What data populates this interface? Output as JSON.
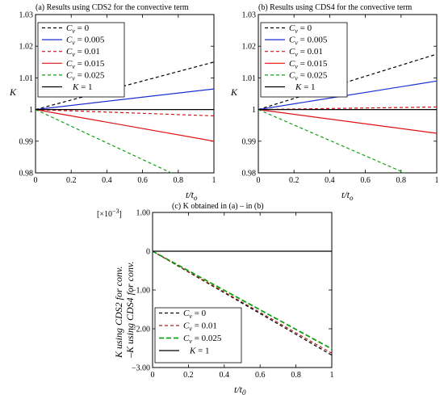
{
  "chart_data": [
    {
      "type": "line",
      "title": "(a) Results using CDS2 for the convective term",
      "xlabel": "t/t",
      "xlabel_sub": "o",
      "ylabel": "K",
      "xlim": [
        0,
        1
      ],
      "ylim": [
        0.98,
        1.03
      ],
      "xticks": [
        "0",
        "0.2",
        "0.4",
        "0.6",
        "0.8",
        "1"
      ],
      "yticks": [
        "0.98",
        "0.99",
        "1",
        "1.01",
        "1.02",
        "1.03"
      ],
      "legend_position": "top-left",
      "series": [
        {
          "name": "= 0",
          "color": "#000000",
          "dash": "4,3",
          "x": [
            0,
            1
          ],
          "y": [
            1.0,
            1.015
          ]
        },
        {
          "name": "= 0.005",
          "color": "#1a2fd0",
          "dash": "",
          "x": [
            0,
            1
          ],
          "y": [
            1.0,
            1.0065
          ]
        },
        {
          "name": "= 0.01",
          "color": "#d01010",
          "dash": "4,3",
          "x": [
            0,
            1
          ],
          "y": [
            1.0,
            0.998
          ]
        },
        {
          "name": "= 0.015",
          "color": "#e01010",
          "dash": "",
          "x": [
            0,
            1
          ],
          "y": [
            1.0,
            0.99
          ]
        },
        {
          "name": "= 0.025",
          "color": "#10a010",
          "dash": "4,3",
          "x": [
            0,
            0.76
          ],
          "y": [
            1.0,
            0.98
          ]
        },
        {
          "name": "K = 1",
          "color": "#000000",
          "dash": "",
          "x": [
            0,
            1
          ],
          "y": [
            1.0,
            1.0
          ]
        }
      ]
    },
    {
      "type": "line",
      "title": "(b) Results using CDS4 for the convective term",
      "xlabel": "t/t",
      "xlabel_sub": "o",
      "ylabel": "K",
      "xlim": [
        0,
        1
      ],
      "ylim": [
        0.98,
        1.03
      ],
      "xticks": [
        "0",
        "0.2",
        "0.4",
        "0.6",
        "0.8",
        "1"
      ],
      "yticks": [
        "0.98",
        "0.99",
        "1",
        "1.01",
        "1.02",
        "1.03"
      ],
      "legend_position": "top-left",
      "series": [
        {
          "name": "= 0",
          "color": "#000000",
          "dash": "4,3",
          "x": [
            0,
            1
          ],
          "y": [
            1.0,
            1.0175
          ]
        },
        {
          "name": "= 0.005",
          "color": "#1a2fd0",
          "dash": "",
          "x": [
            0,
            1
          ],
          "y": [
            1.0,
            1.009
          ]
        },
        {
          "name": "= 0.01",
          "color": "#d01010",
          "dash": "4,3",
          "x": [
            0,
            1
          ],
          "y": [
            1.0,
            1.0008
          ]
        },
        {
          "name": "= 0.015",
          "color": "#e01010",
          "dash": "",
          "x": [
            0,
            1
          ],
          "y": [
            1.0,
            0.9925
          ]
        },
        {
          "name": "= 0.025",
          "color": "#10a010",
          "dash": "4,3",
          "x": [
            0,
            0.82
          ],
          "y": [
            1.0,
            0.98
          ]
        },
        {
          "name": "K = 1",
          "color": "#000000",
          "dash": "",
          "x": [
            0,
            1
          ],
          "y": [
            1.0,
            1.0
          ]
        }
      ]
    },
    {
      "type": "line",
      "title": "(c) K obtained in (a) – in (b)",
      "xlabel": "t/t",
      "xlabel_sub": "0",
      "ylabel_line1": "K using CDS2 for conv.",
      "ylabel_line2": "–K using CDS4 for conv.",
      "scale_label": "[×10",
      "scale_exp": "−3",
      "scale_close": "]",
      "xlim": [
        0,
        1
      ],
      "ylim": [
        -3.0,
        1.0
      ],
      "xticks": [
        "0",
        "0.2",
        "0.4",
        "0.6",
        "0.8",
        "1"
      ],
      "yticks": [
        "−3.00",
        "−2.00",
        "−1.00",
        "0",
        "1.00"
      ],
      "legend_position": "bottom-left",
      "series": [
        {
          "name": "= 0",
          "color": "#000000",
          "dash": "4,3",
          "x": [
            0,
            1
          ],
          "y": [
            0,
            -2.68
          ]
        },
        {
          "name": "= 0.01",
          "color": "#b02020",
          "dash": "4,3",
          "x": [
            0,
            1
          ],
          "y": [
            0,
            -2.63
          ]
        },
        {
          "name": "= 0.025",
          "color": "#10a010",
          "dash": "6,3",
          "x": [
            0,
            1
          ],
          "y": [
            0,
            -2.52
          ]
        },
        {
          "name": "K = 1",
          "color": "#000000",
          "dash": "",
          "x": [
            0,
            1
          ],
          "y": [
            0,
            0
          ]
        }
      ]
    }
  ]
}
